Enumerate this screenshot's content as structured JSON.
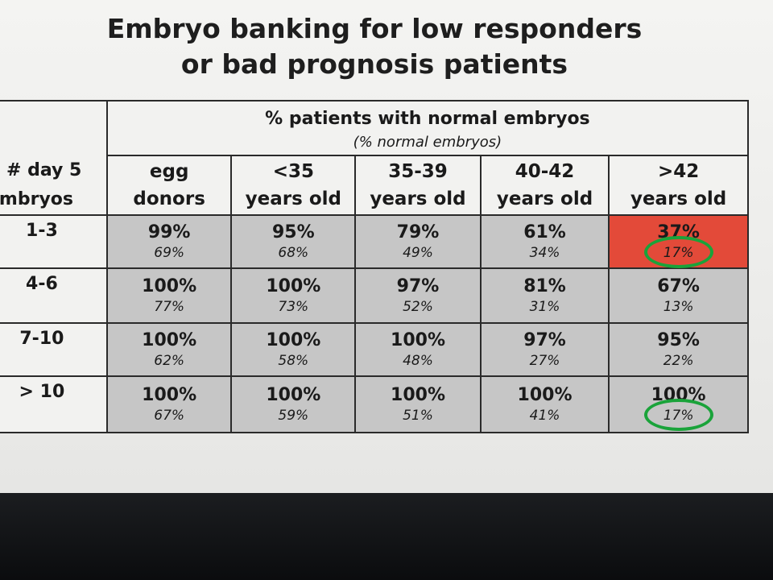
{
  "title_line1": "Embryo banking for low responders",
  "title_line2": "or bad prognosis patients",
  "table": {
    "main_header": "% patients with normal embryos",
    "sub_header": "(% normal embryos)",
    "row_header_line1": "# day 5",
    "row_header_line2": "embryos",
    "columns": [
      {
        "line1": "egg",
        "line2": "donors"
      },
      {
        "line1": "<35",
        "line2": "years old"
      },
      {
        "line1": "35-39",
        "line2": "years old"
      },
      {
        "line1": "40-42",
        "line2": "years old"
      },
      {
        "line1": ">42",
        "line2": "years old"
      }
    ],
    "rows": [
      {
        "label": "1-3",
        "cells": [
          {
            "patients": "99%",
            "normal": "69%"
          },
          {
            "patients": "95%",
            "normal": "68%"
          },
          {
            "patients": "79%",
            "normal": "49%"
          },
          {
            "patients": "61%",
            "normal": "34%"
          },
          {
            "patients": "37%",
            "normal": "17%"
          }
        ]
      },
      {
        "label": "4-6",
        "cells": [
          {
            "patients": "100%",
            "normal": "77%"
          },
          {
            "patients": "100%",
            "normal": "73%"
          },
          {
            "patients": "97%",
            "normal": "52%"
          },
          {
            "patients": "81%",
            "normal": "31%"
          },
          {
            "patients": "67%",
            "normal": "13%"
          }
        ]
      },
      {
        "label": "7-10",
        "cells": [
          {
            "patients": "100%",
            "normal": "62%"
          },
          {
            "patients": "100%",
            "normal": "58%"
          },
          {
            "patients": "100%",
            "normal": "48%"
          },
          {
            "patients": "97%",
            "normal": "27%"
          },
          {
            "patients": "95%",
            "normal": "22%"
          }
        ]
      },
      {
        "label": "> 10",
        "cells": [
          {
            "patients": "100%",
            "normal": "67%"
          },
          {
            "patients": "100%",
            "normal": "59%"
          },
          {
            "patients": "100%",
            "normal": "51%"
          },
          {
            "patients": "100%",
            "normal": "41%"
          },
          {
            "patients": "100%",
            "normal": "17%"
          }
        ]
      }
    ]
  },
  "colors": {
    "highlight_cell": "#e34a39",
    "circle_annotation": "#1aa33a",
    "cell_background": "#c6c6c6"
  }
}
